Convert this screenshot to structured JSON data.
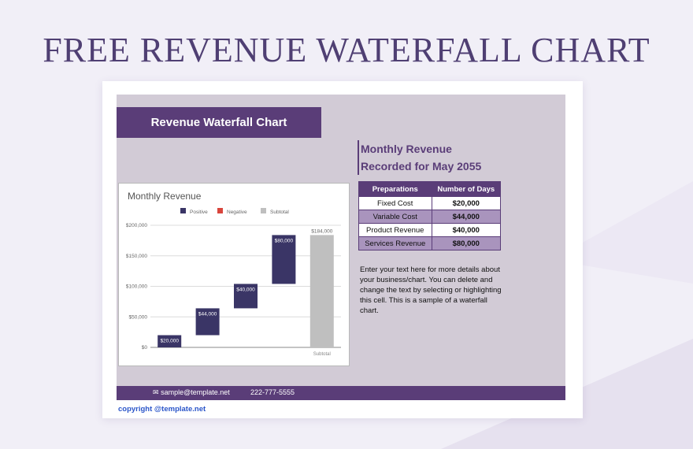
{
  "page": {
    "title": "FREE REVENUE WATERFALL CHART"
  },
  "sheet": {
    "banner": "Revenue Waterfall Chart",
    "heading_line1": "Monthly Revenue",
    "heading_line2": "Recorded for May 2055",
    "table": {
      "headers": [
        "Preparations",
        "Number of Days"
      ],
      "rows": [
        {
          "label": "Fixed Cost",
          "value": "$20,000"
        },
        {
          "label": "Variable Cost",
          "value": "$44,000"
        },
        {
          "label": "Product Revenue",
          "value": "$40,000"
        },
        {
          "label": "Services Revenue",
          "value": "$80,000"
        }
      ]
    },
    "description": "Enter your text here for more details about your business/chart. You can delete and change the text by selecting or highlighting this cell. This is a sample of a waterfall chart.",
    "footer": {
      "email": "sample@template.net",
      "phone": "222-777-5555"
    },
    "copyright": "copyright @template.net"
  },
  "colors": {
    "accent": "#5a3d78",
    "positive": "#3a3566",
    "negative": "#d9453c",
    "subtotal": "#bfbfbf"
  },
  "chart_data": {
    "type": "bar",
    "subtype": "waterfall",
    "title": "Monthly Revenue",
    "legend": [
      "Positive",
      "Negative",
      "Subtotal"
    ],
    "legend_position": "top",
    "categories": [
      "",
      "",
      "",
      "",
      "Subtotal"
    ],
    "series": [
      {
        "name": "Positive",
        "values": [
          20000,
          44000,
          40000,
          80000,
          null
        ]
      },
      {
        "name": "Subtotal",
        "values": [
          null,
          null,
          null,
          null,
          184000
        ]
      }
    ],
    "data_labels": [
      "$20,000",
      "$44,000",
      "$40,000",
      "$80,000",
      "$184,000"
    ],
    "yticks": [
      "$0",
      "$50,000",
      "$100,000",
      "$150,000",
      "$200,000"
    ],
    "ylim": [
      0,
      200000
    ],
    "grid": true
  }
}
